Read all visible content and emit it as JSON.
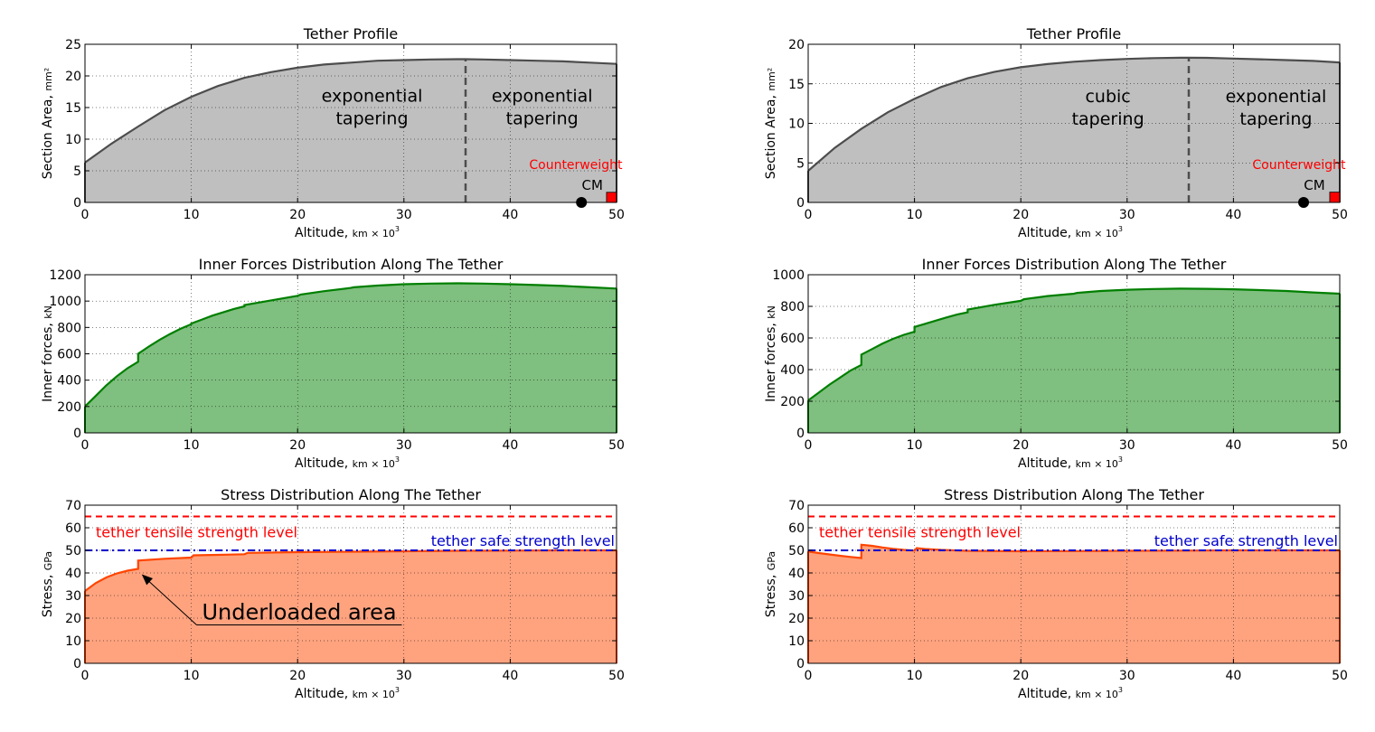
{
  "figure": {
    "x_axis_label": "Altitude,",
    "x_axis_unit": "km × 10",
    "x_axis_unit_exp": "3"
  },
  "chart_data": [
    {
      "type": "area",
      "panel": "left-top",
      "title": "Tether Profile",
      "xlabel": "Altitude, km × 10^3",
      "ylabel": "Section Area,",
      "yunit": "mm²",
      "xlim": [
        0,
        50
      ],
      "ylim": [
        0,
        25
      ],
      "xticks": [
        0,
        10,
        20,
        30,
        40,
        50
      ],
      "yticks": [
        0,
        5,
        10,
        15,
        20,
        25
      ],
      "grid": true,
      "fill_color": "#bfbfbf",
      "line_color": "#4d4d4d",
      "series": [
        {
          "x": [
            0,
            2.5,
            5,
            7.5,
            10,
            12.5,
            15,
            17.5,
            20,
            22.5,
            25,
            27.5,
            30,
            32.5,
            35,
            35.8,
            37.5,
            40,
            42.5,
            45,
            47.5,
            50
          ],
          "values": [
            6.3,
            9.3,
            12.0,
            14.6,
            16.7,
            18.4,
            19.7,
            20.6,
            21.3,
            21.8,
            22.1,
            22.4,
            22.5,
            22.6,
            22.65,
            22.65,
            22.6,
            22.5,
            22.4,
            22.3,
            22.1,
            21.9
          ]
        }
      ],
      "divider_x": 35.8,
      "annotations": [
        {
          "lines": [
            "exponential",
            "tapering"
          ],
          "x": 27,
          "y": 15.9
        },
        {
          "lines": [
            "exponential",
            "tapering"
          ],
          "x": 43,
          "y": 15.9
        }
      ],
      "cm": {
        "label": "CM",
        "x": 46.7,
        "y": 0
      },
      "counterweight": {
        "label": "Counterweight",
        "x": 49.4,
        "height": 1.6
      }
    },
    {
      "type": "area",
      "panel": "left-middle",
      "title": "Inner Forces Distribution Along The Tether",
      "xlabel": "Altitude, km × 10^3",
      "ylabel": "Inner forces,",
      "yunit": "kN",
      "xlim": [
        0,
        50
      ],
      "ylim": [
        0,
        1200
      ],
      "xticks": [
        0,
        10,
        20,
        30,
        40,
        50
      ],
      "yticks": [
        0,
        200,
        400,
        600,
        800,
        1000,
        1200
      ],
      "grid": true,
      "fill_color": "#7fbf7f",
      "line_color": "#007f00",
      "series": [
        {
          "x": [
            0,
            1,
            2,
            3,
            4,
            5,
            5,
            6,
            7,
            8,
            9,
            10,
            10,
            11,
            12,
            13,
            14,
            15,
            15,
            17.5,
            20,
            20.3,
            22.5,
            25,
            25.3,
            27.5,
            30,
            32.5,
            35,
            37.5,
            40,
            42.5,
            45,
            47.5,
            50
          ],
          "values": [
            200,
            280,
            360,
            430,
            490,
            540,
            600,
            655,
            705,
            750,
            790,
            825,
            830,
            860,
            890,
            915,
            940,
            960,
            970,
            1005,
            1040,
            1050,
            1075,
            1100,
            1105,
            1118,
            1128,
            1133,
            1135,
            1133,
            1128,
            1122,
            1115,
            1105,
            1095
          ]
        }
      ]
    },
    {
      "type": "area",
      "panel": "left-bottom",
      "title": "Stress Distribution Along The Tether",
      "xlabel": "Altitude, km × 10^3",
      "ylabel": "Stress,",
      "yunit": "GPa",
      "xlim": [
        0,
        50
      ],
      "ylim": [
        0,
        70
      ],
      "xticks": [
        0,
        10,
        20,
        30,
        40,
        50
      ],
      "yticks": [
        0,
        10,
        20,
        30,
        40,
        50,
        60,
        70
      ],
      "grid": true,
      "fill_color": "#ffa37f",
      "line_color": "#ff4500",
      "series": [
        {
          "x": [
            0,
            1,
            2,
            3,
            4,
            5,
            5,
            7.5,
            10,
            10.2,
            12.5,
            15,
            15.3,
            20,
            25,
            30,
            35,
            40,
            45,
            50
          ],
          "values": [
            32,
            35.5,
            38,
            39.8,
            41,
            41.8,
            45.5,
            46.3,
            46.8,
            47.8,
            48,
            48.3,
            48.9,
            49.2,
            49.4,
            49.6,
            49.8,
            49.9,
            50,
            50
          ]
        }
      ],
      "reference_lines": [
        {
          "label": "tether tensile strength level",
          "y": 65,
          "color": "#ff0000",
          "style": "dashed"
        },
        {
          "label": "tether safe strength level",
          "y": 50,
          "color": "#0000cc",
          "style": "dash-dot"
        }
      ],
      "arrow_annotation": {
        "label": "Underloaded area",
        "points_to": [
          5,
          41
        ],
        "text_at": [
          10.5,
          17
        ]
      }
    },
    {
      "type": "area",
      "panel": "right-top",
      "title": "Tether Profile",
      "xlabel": "Altitude, km × 10^3",
      "ylabel": "Section Area,",
      "yunit": "mm²",
      "xlim": [
        0,
        50
      ],
      "ylim": [
        0,
        20
      ],
      "xticks": [
        0,
        10,
        20,
        30,
        40,
        50
      ],
      "yticks": [
        0,
        5,
        10,
        15,
        20
      ],
      "grid": true,
      "fill_color": "#bfbfbf",
      "line_color": "#4d4d4d",
      "series": [
        {
          "x": [
            0,
            2.5,
            5,
            7.5,
            10,
            12.5,
            15,
            17.5,
            20,
            22.5,
            25,
            27.5,
            30,
            32.5,
            35,
            35.8,
            37.5,
            40,
            42.5,
            45,
            47.5,
            50
          ],
          "values": [
            4.0,
            6.9,
            9.3,
            11.4,
            13.1,
            14.6,
            15.7,
            16.5,
            17.1,
            17.5,
            17.8,
            18.0,
            18.15,
            18.25,
            18.3,
            18.3,
            18.28,
            18.2,
            18.1,
            18.0,
            17.9,
            17.7
          ]
        }
      ],
      "divider_x": 35.8,
      "annotations": [
        {
          "lines": [
            "cubic",
            "tapering"
          ],
          "x": 28.2,
          "y": 12.7
        },
        {
          "lines": [
            "exponential",
            "tapering"
          ],
          "x": 44,
          "y": 12.7
        }
      ],
      "cm": {
        "label": "CM",
        "x": 46.6,
        "y": 0
      },
      "counterweight": {
        "label": "Counterweight",
        "x": 49.4,
        "height": 1.3
      }
    },
    {
      "type": "area",
      "panel": "right-middle",
      "title": "Inner Forces Distribution Along The Tether",
      "xlabel": "Altitude, km × 10^3",
      "ylabel": "Inner forces,",
      "yunit": "kN",
      "xlim": [
        0,
        50
      ],
      "ylim": [
        0,
        1000
      ],
      "xticks": [
        0,
        10,
        20,
        30,
        40,
        50
      ],
      "yticks": [
        0,
        200,
        400,
        600,
        800,
        1000
      ],
      "grid": true,
      "fill_color": "#7fbf7f",
      "line_color": "#007f00",
      "series": [
        {
          "x": [
            0,
            1,
            2,
            3,
            4,
            5,
            5,
            6,
            7,
            8,
            9,
            10,
            10,
            11,
            12,
            13,
            14,
            15,
            15,
            17.5,
            20,
            20.3,
            22.5,
            25,
            25.3,
            27.5,
            30,
            32.5,
            35,
            37.5,
            40,
            42.5,
            45,
            47.5,
            50
          ],
          "values": [
            205,
            255,
            305,
            350,
            395,
            430,
            495,
            530,
            565,
            595,
            620,
            640,
            670,
            690,
            710,
            730,
            748,
            762,
            780,
            810,
            835,
            845,
            865,
            880,
            885,
            897,
            905,
            910,
            912,
            911,
            908,
            903,
            897,
            888,
            880
          ]
        }
      ]
    },
    {
      "type": "area",
      "panel": "right-bottom",
      "title": "Stress Distribution Along The Tether",
      "xlabel": "Altitude, km × 10^3",
      "ylabel": "Stress,",
      "yunit": "GPa",
      "xlim": [
        0,
        50
      ],
      "ylim": [
        0,
        70
      ],
      "xticks": [
        0,
        10,
        20,
        30,
        40,
        50
      ],
      "yticks": [
        0,
        10,
        20,
        30,
        40,
        50,
        60,
        70
      ],
      "grid": true,
      "fill_color": "#ffa37f",
      "line_color": "#ff4500",
      "series": [
        {
          "x": [
            0,
            1,
            2,
            3,
            4,
            5,
            5,
            6,
            7,
            8,
            9,
            10,
            10.2,
            11,
            12.5,
            15,
            20,
            25,
            30,
            35,
            40,
            45,
            50
          ],
          "values": [
            49.5,
            48.8,
            48.2,
            47.6,
            47.1,
            46.6,
            52.5,
            52.0,
            51.3,
            50.7,
            50.2,
            49.9,
            51,
            50.6,
            50.2,
            49.8,
            49.6,
            49.7,
            49.8,
            49.9,
            50,
            50,
            50
          ]
        }
      ],
      "reference_lines": [
        {
          "label": "tether tensile strength level",
          "y": 65,
          "color": "#ff0000",
          "style": "dashed"
        },
        {
          "label": "tether safe strength level",
          "y": 50,
          "color": "#0000cc",
          "style": "dash-dot"
        }
      ]
    }
  ]
}
